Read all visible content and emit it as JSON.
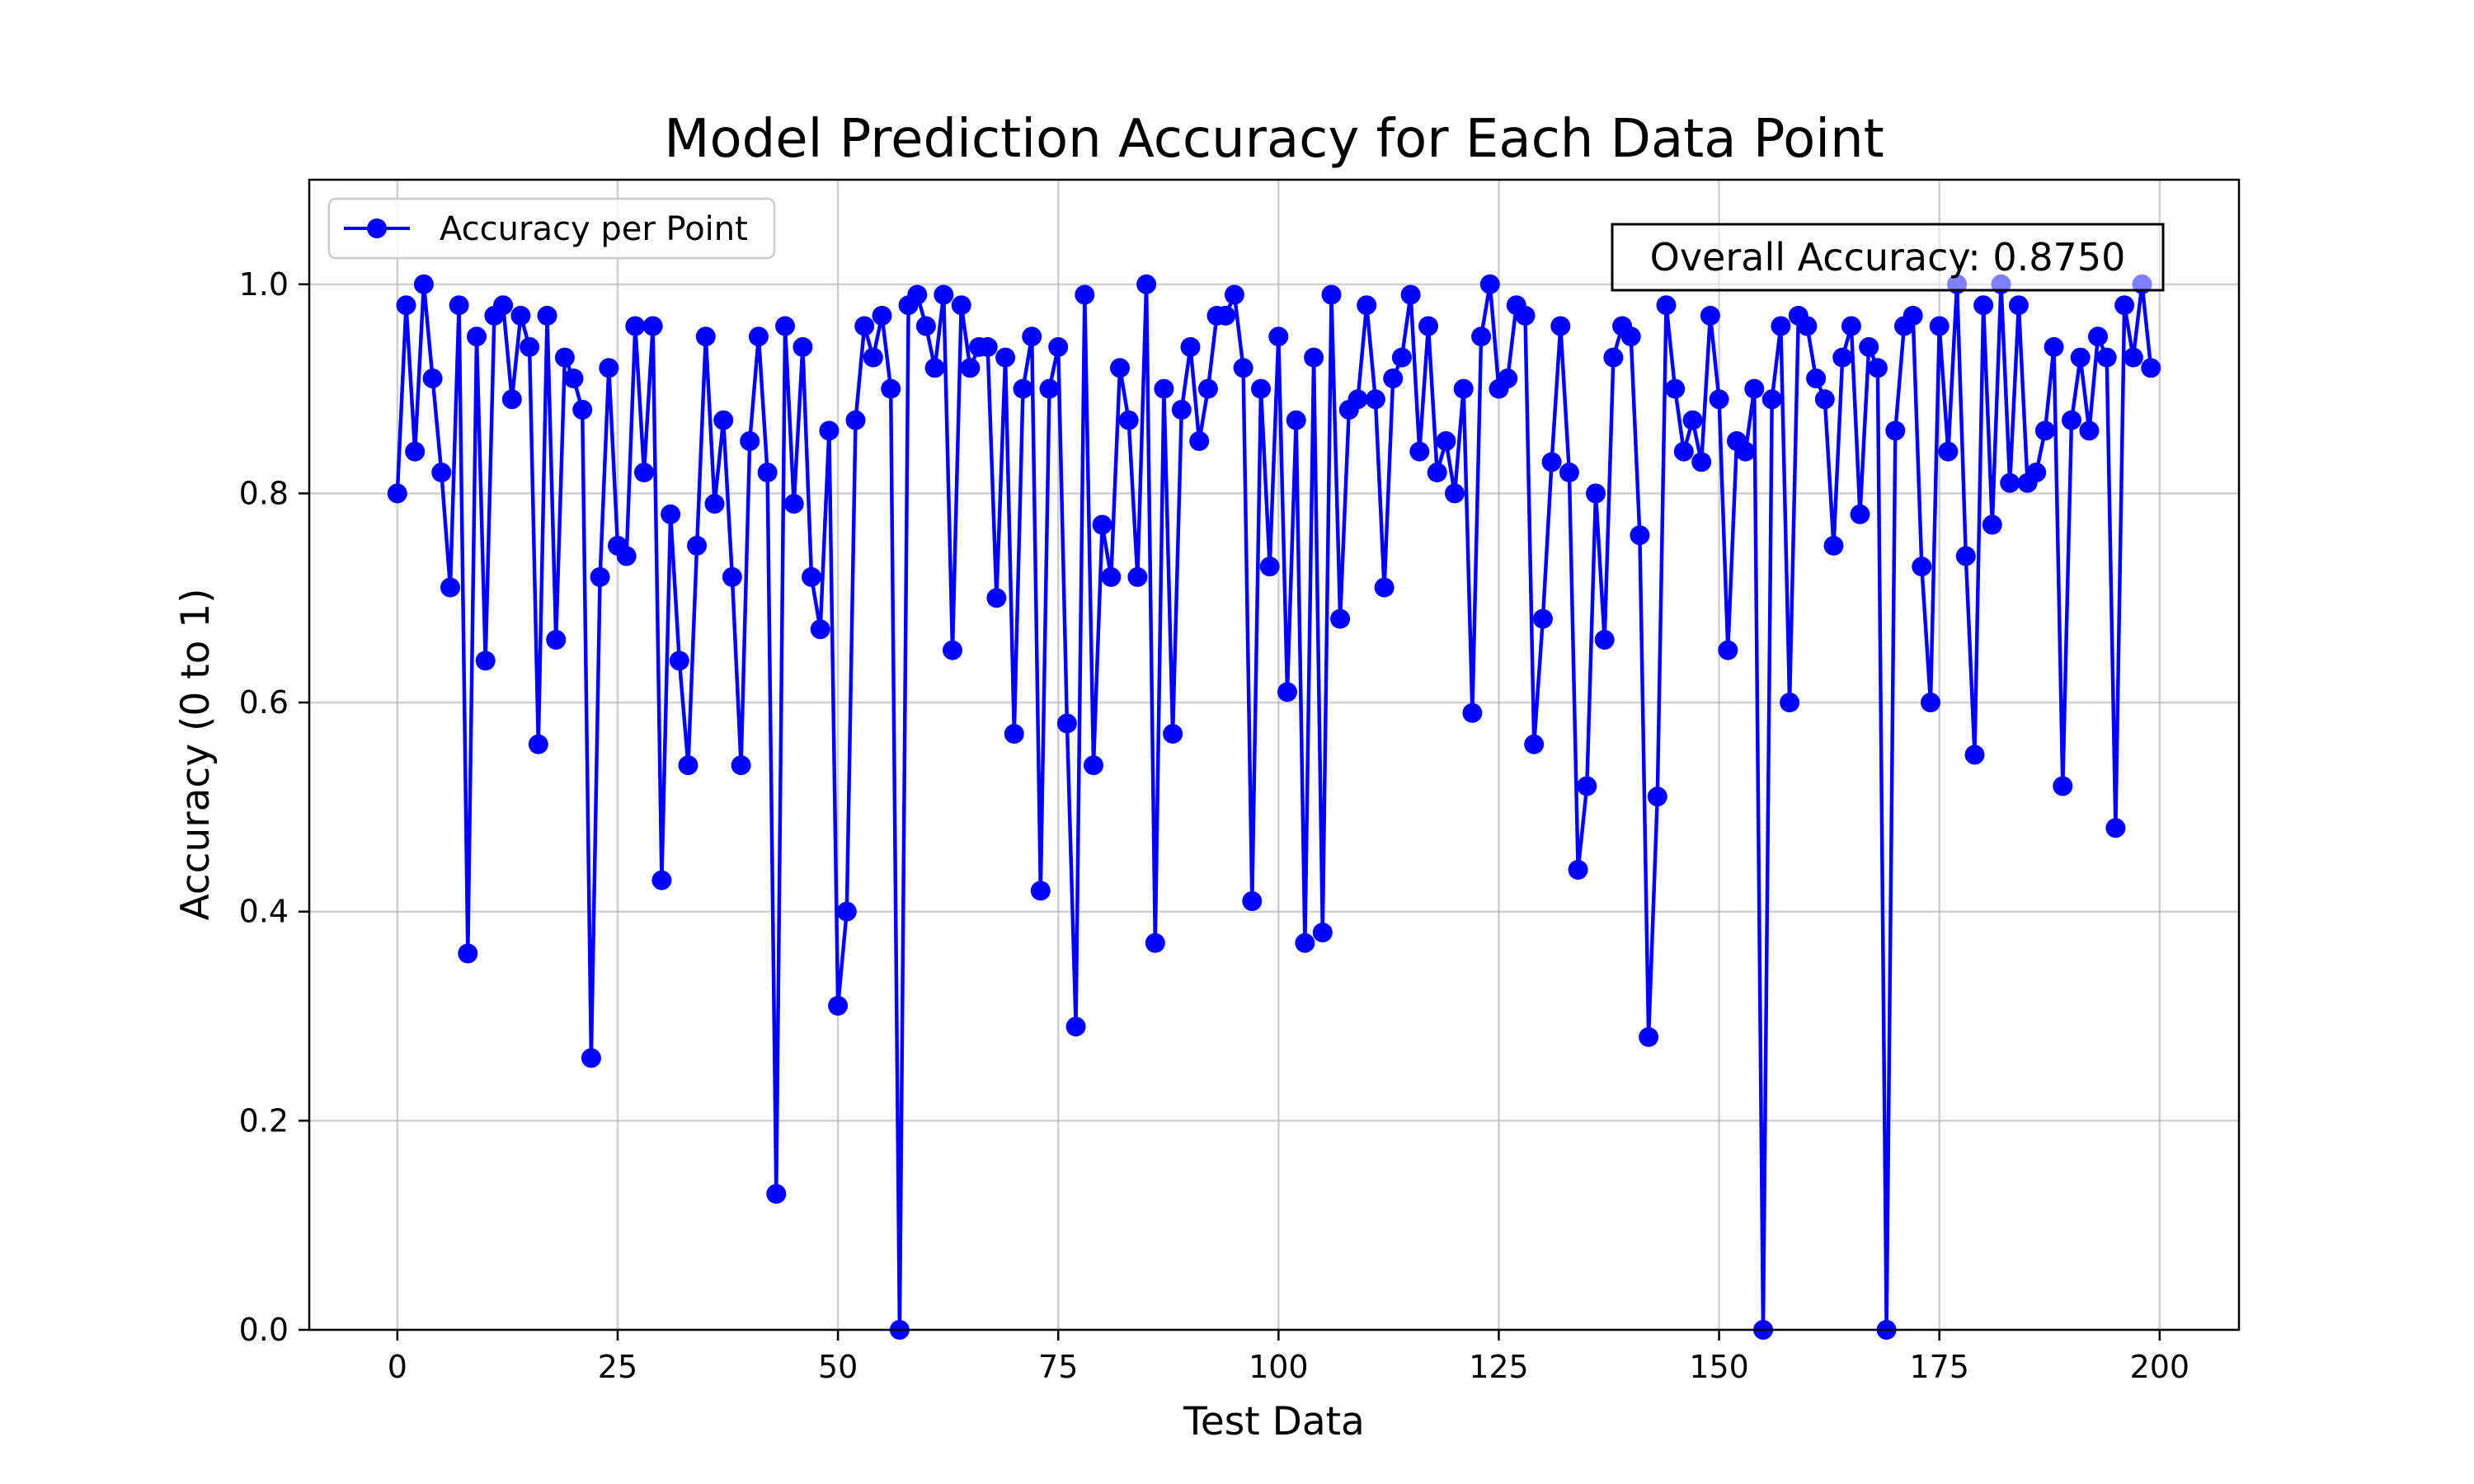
{
  "chart_data": {
    "type": "line",
    "title": "Model Prediction Accuracy for Each Data Point",
    "xlabel": "Test Data",
    "ylabel": "Accuracy (0 to 1)",
    "xlim": [
      -10,
      209
    ],
    "ylim": [
      0,
      1.1
    ],
    "xticks": [
      0,
      25,
      50,
      75,
      100,
      125,
      150,
      175,
      200
    ],
    "xtick_labels": [
      "0",
      "25",
      "50",
      "75",
      "100",
      "125",
      "150",
      "175",
      "200"
    ],
    "yticks": [
      0.0,
      0.2,
      0.4,
      0.6,
      0.8,
      1.0
    ],
    "ytick_labels": [
      "0.0",
      "0.2",
      "0.4",
      "0.6",
      "0.8",
      "1.0"
    ],
    "grid": true,
    "legend_position": "upper left",
    "annotation": "Overall Accuracy: 0.8750",
    "annotation_position": "top-right",
    "series": [
      {
        "name": "Accuracy per Point",
        "color": "#0000ff",
        "marker": "circle",
        "x": [
          0,
          1,
          2,
          3,
          4,
          5,
          6,
          7,
          8,
          9,
          10,
          11,
          12,
          13,
          14,
          15,
          16,
          17,
          18,
          19,
          20,
          21,
          22,
          23,
          24,
          25,
          26,
          27,
          28,
          29,
          30,
          31,
          32,
          33,
          34,
          35,
          36,
          37,
          38,
          39,
          40,
          41,
          42,
          43,
          44,
          45,
          46,
          47,
          48,
          49,
          50,
          51,
          52,
          53,
          54,
          55,
          56,
          57,
          58,
          59,
          60,
          61,
          62,
          63,
          64,
          65,
          66,
          67,
          68,
          69,
          70,
          71,
          72,
          73,
          74,
          75,
          76,
          77,
          78,
          79,
          80,
          81,
          82,
          83,
          84,
          85,
          86,
          87,
          88,
          89,
          90,
          91,
          92,
          93,
          94,
          95,
          96,
          97,
          98,
          99,
          100,
          101,
          102,
          103,
          104,
          105,
          106,
          107,
          108,
          109,
          110,
          111,
          112,
          113,
          114,
          115,
          116,
          117,
          118,
          119,
          120,
          121,
          122,
          123,
          124,
          125,
          126,
          127,
          128,
          129,
          130,
          131,
          132,
          133,
          134,
          135,
          136,
          137,
          138,
          139,
          140,
          141,
          142,
          143,
          144,
          145,
          146,
          147,
          148,
          149,
          150,
          151,
          152,
          153,
          154,
          155,
          156,
          157,
          158,
          159,
          160,
          161,
          162,
          163,
          164,
          165,
          166,
          167,
          168,
          169,
          170,
          171,
          172,
          173,
          174,
          175,
          176,
          177,
          178,
          179,
          180,
          181,
          182,
          183,
          184,
          185,
          186,
          187,
          188,
          189,
          190,
          191,
          192,
          193,
          194,
          195,
          196,
          197,
          198,
          199
        ],
        "values": [
          0.8,
          0.98,
          0.84,
          1.0,
          0.91,
          0.82,
          0.71,
          0.98,
          0.36,
          0.95,
          0.64,
          0.97,
          0.98,
          0.89,
          0.97,
          0.94,
          0.56,
          0.97,
          0.66,
          0.93,
          0.91,
          0.88,
          0.26,
          0.72,
          0.92,
          0.75,
          0.74,
          0.96,
          0.82,
          0.96,
          0.43,
          0.78,
          0.64,
          0.54,
          0.75,
          0.95,
          0.79,
          0.87,
          0.72,
          0.54,
          0.85,
          0.95,
          0.82,
          0.13,
          0.96,
          0.79,
          0.94,
          0.72,
          0.67,
          0.86,
          0.31,
          0.4,
          0.87,
          0.96,
          0.93,
          0.97,
          0.9,
          0.0,
          0.98,
          0.99,
          0.96,
          0.92,
          0.99,
          0.65,
          0.98,
          0.92,
          0.94,
          0.94,
          0.7,
          0.93,
          0.57,
          0.9,
          0.95,
          0.42,
          0.9,
          0.94,
          0.58,
          0.29,
          0.99,
          0.54,
          0.77,
          0.72,
          0.92,
          0.87,
          0.72,
          1.0,
          0.37,
          0.9,
          0.57,
          0.88,
          0.94,
          0.85,
          0.9,
          0.97,
          0.97,
          0.99,
          0.92,
          0.41,
          0.9,
          0.73,
          0.95,
          0.61,
          0.87,
          0.37,
          0.93,
          0.38,
          0.99,
          0.68,
          0.88,
          0.89,
          0.98,
          0.89,
          0.71,
          0.91,
          0.93,
          0.99,
          0.84,
          0.96,
          0.82,
          0.85,
          0.8,
          0.9,
          0.59,
          0.95,
          1.0,
          0.9,
          0.91,
          0.98,
          0.97,
          0.56,
          0.68,
          0.83,
          0.96,
          0.82,
          0.44,
          0.52,
          0.8,
          0.66,
          0.93,
          0.96,
          0.95,
          0.76,
          0.28,
          0.51,
          0.98,
          0.9,
          0.84,
          0.87,
          0.83,
          0.97,
          0.89,
          0.65,
          0.85,
          0.84,
          0.9,
          0.0,
          0.89,
          0.96,
          0.6,
          0.97,
          0.96,
          0.91,
          0.89,
          0.75,
          0.93,
          0.96,
          0.78,
          0.94,
          0.92,
          0.0,
          0.86,
          0.96,
          0.97,
          0.73,
          0.6,
          0.96,
          0.84,
          1.0,
          0.74,
          0.55,
          0.98,
          0.77,
          1.0,
          0.81,
          0.98,
          0.81,
          0.82,
          0.86,
          0.94,
          0.52,
          0.87,
          0.93,
          0.86,
          0.95,
          0.93,
          0.48,
          0.98,
          0.93,
          1.0,
          0.92
        ]
      }
    ]
  }
}
